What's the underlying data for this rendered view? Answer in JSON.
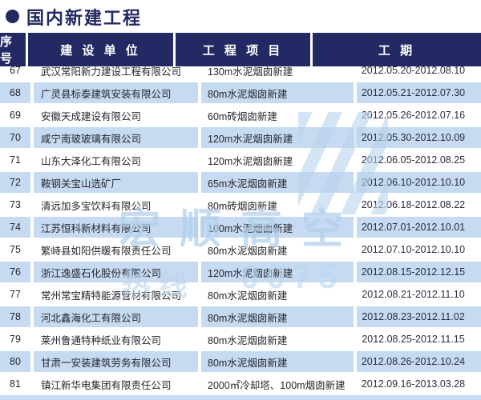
{
  "page": {
    "title": "国内新建工程",
    "bullet": "●"
  },
  "table": {
    "headers": [
      "序号",
      "建 设 单 位",
      "工 程 项 目",
      "工  期"
    ],
    "rows": [
      {
        "no": "67",
        "company": "武汉常阳新力建设工程有限公司",
        "project": "130m水泥烟囱新建",
        "period": "2012.05.20-2012.08.10"
      },
      {
        "no": "68",
        "company": "广灵县标泰建筑安装有限公司",
        "project": "80m水泥烟囱新建",
        "period": "2012.05.21-2012.07.30"
      },
      {
        "no": "69",
        "company": "安徽天成建设有限公司",
        "project": "60m砖烟囱新建",
        "period": "2012.05.26-2012.07.16"
      },
      {
        "no": "70",
        "company": "咸宁南玻玻璃有限公司",
        "project": "120m水泥烟囱新建",
        "period": "2012.05.30-2012.10.09"
      },
      {
        "no": "71",
        "company": "山东大泽化工有限公司",
        "project": "120m水泥烟囱新建",
        "period": "2012.06.05-2012.08.25"
      },
      {
        "no": "72",
        "company": "鞍钢关宝山选矿厂",
        "project": "65m水泥烟囱新建",
        "period": "2012.06.10-2012.10.10"
      },
      {
        "no": "73",
        "company": "清远加多宝饮料有限公司",
        "project": "80m砖烟囱新建",
        "period": "2012.06.18-2012.08.22"
      },
      {
        "no": "74",
        "company": "江苏恒科新材料有限公司",
        "project": "100m水泥烟囱新建",
        "period": "2012.07.01-2012.10.01"
      },
      {
        "no": "75",
        "company": "繁峙县如阳供暖有限责任公司",
        "project": "80m水泥烟囱新建",
        "period": "2012.07.10-2012.10.10"
      },
      {
        "no": "76",
        "company": "浙江逸盛石化股份有限公司",
        "project": "120m水泥烟囱新建",
        "period": "2012.08.15-2012.12.15"
      },
      {
        "no": "77",
        "company": "常州常宝精特能源管材有限公司",
        "project": "80m水泥烟囱新建",
        "period": "2012.08.21-2012.11.10"
      },
      {
        "no": "78",
        "company": "河北鑫海化工有限公司",
        "project": "80m水泥烟囱新建",
        "period": "2012.08.23-2012.11.02"
      },
      {
        "no": "79",
        "company": "莱州鲁通特种纸业有限公司",
        "project": "80m水泥烟囱新建",
        "period": "2012.08.25-2012.11.15"
      },
      {
        "no": "80",
        "company": "甘肃一安装建筑劳务有限公司",
        "project": "80m水泥烟囱新建",
        "period": "2012.08.26-2012.10.24"
      },
      {
        "no": "81",
        "company": "镇江新华电集团有限责任公司",
        "project": "2000㎡冷却塔、100m烟囱新建",
        "period": "2012.09.16-2013.03.28"
      }
    ]
  },
  "watermark": {
    "name": "宏顺高空",
    "hotline_label": "热线",
    "digits": "0075"
  },
  "colors": {
    "header_navy": "#232a63",
    "row_blue": "#c6daf1",
    "watermark_blue": "#b7d3ec",
    "text_dark": "#26272e"
  }
}
